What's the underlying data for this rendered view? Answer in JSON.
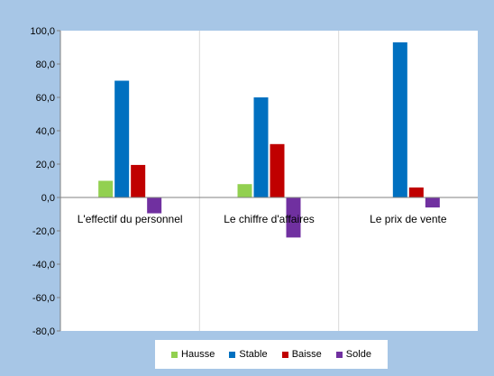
{
  "chart_data": {
    "type": "bar",
    "categories": [
      "L'effectif du personnel",
      "Le chiffre d'affaires",
      "Le prix de vente"
    ],
    "series": [
      {
        "name": "Hausse",
        "color": "#92d050",
        "values": [
          10.0,
          8.0,
          0.0
        ]
      },
      {
        "name": "Stable",
        "color": "#0070c0",
        "values": [
          70.0,
          60.0,
          93.0
        ]
      },
      {
        "name": "Baisse",
        "color": "#c00000",
        "values": [
          19.5,
          32.0,
          6.0
        ]
      },
      {
        "name": "Solde",
        "color": "#7030a0",
        "values": [
          -9.5,
          -24.0,
          -6.0
        ]
      }
    ],
    "ylim": [
      -80,
      100
    ],
    "yticks": [
      "100,0",
      "80,0",
      "60,0",
      "40,0",
      "20,0",
      "0,0",
      "-20,0",
      "-40,0",
      "-60,0",
      "-80,0"
    ],
    "grid": true,
    "legend_position": "bottom"
  }
}
